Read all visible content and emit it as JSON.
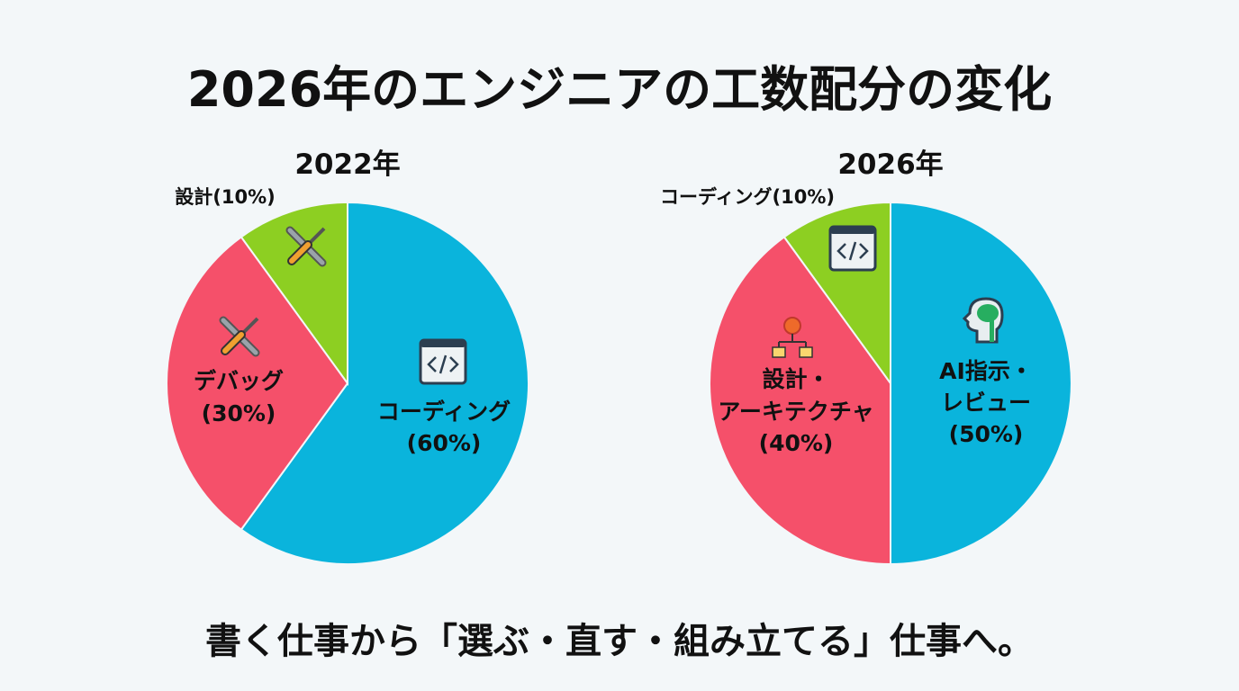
{
  "title": "2026年のエンジニアの工数配分の変化",
  "footer": "書く仕事から「選ぶ・直す・組み立てる」仕事へ。",
  "colors": {
    "blue": "#0ab4dc",
    "red": "#f5506a",
    "green": "#8dcf22",
    "background": "#f3f7f9"
  },
  "chart_data": [
    {
      "type": "pie",
      "title": "2022年",
      "slices": [
        {
          "label": "コーディング",
          "value": 60,
          "pct_label": "(60%)",
          "color": "#0ab4dc",
          "icon": "code-window-icon"
        },
        {
          "label": "デバッグ",
          "value": 30,
          "pct_label": "(30%)",
          "color": "#f5506a",
          "icon": "wrench-screwdriver-icon"
        },
        {
          "label": "設計(10%)",
          "value": 10,
          "color": "#8dcf22",
          "icon": "wrench-screwdriver-icon"
        }
      ]
    },
    {
      "type": "pie",
      "title": "2026年",
      "slices": [
        {
          "label_lines": [
            "AI指示・",
            "レビュー"
          ],
          "value": 50,
          "pct_label": "(50%)",
          "color": "#0ab4dc",
          "icon": "ai-brain-head-icon"
        },
        {
          "label_lines": [
            "設計・",
            "アーキテクチャ"
          ],
          "value": 40,
          "pct_label": "(40%)",
          "color": "#f5506a",
          "icon": "hierarchy-diagram-icon"
        },
        {
          "label": "コーディング(10%)",
          "value": 10,
          "color": "#8dcf22",
          "icon": "code-window-icon"
        }
      ]
    }
  ]
}
